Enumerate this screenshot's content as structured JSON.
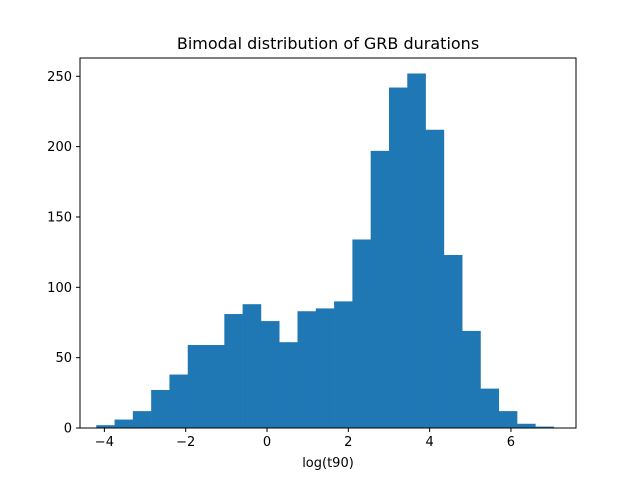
{
  "chart_data": {
    "type": "bar",
    "title": "Bimodal distribution of GRB durations",
    "xlabel": "log(t90)",
    "ylabel": "",
    "xlim": [
      -4.6,
      7.6
    ],
    "ylim": [
      0,
      263
    ],
    "bin_edges": [
      -4.2,
      -3.75,
      -3.3,
      -2.85,
      -2.4,
      -1.95,
      -1.5,
      -1.05,
      -0.6,
      -0.15,
      0.3,
      0.75,
      1.2,
      1.65,
      2.1,
      2.55,
      3.0,
      3.45,
      3.9,
      4.35,
      4.8,
      5.25,
      5.7,
      6.15,
      6.6,
      7.05
    ],
    "values": [
      2,
      6,
      12,
      27,
      38,
      59,
      59,
      81,
      88,
      76,
      61,
      83,
      85,
      90,
      134,
      197,
      242,
      252,
      212,
      123,
      69,
      28,
      12,
      3,
      1
    ],
    "x_ticks": [
      -4,
      -2,
      0,
      2,
      4,
      6
    ],
    "x_tick_labels": [
      "−4",
      "−2",
      "0",
      "2",
      "4",
      "6"
    ],
    "y_ticks": [
      0,
      50,
      100,
      150,
      200,
      250
    ],
    "y_tick_labels": [
      "0",
      "50",
      "100",
      "150",
      "200",
      "250"
    ],
    "bar_color": "#1f77b4",
    "grid": false,
    "legend": "none"
  }
}
